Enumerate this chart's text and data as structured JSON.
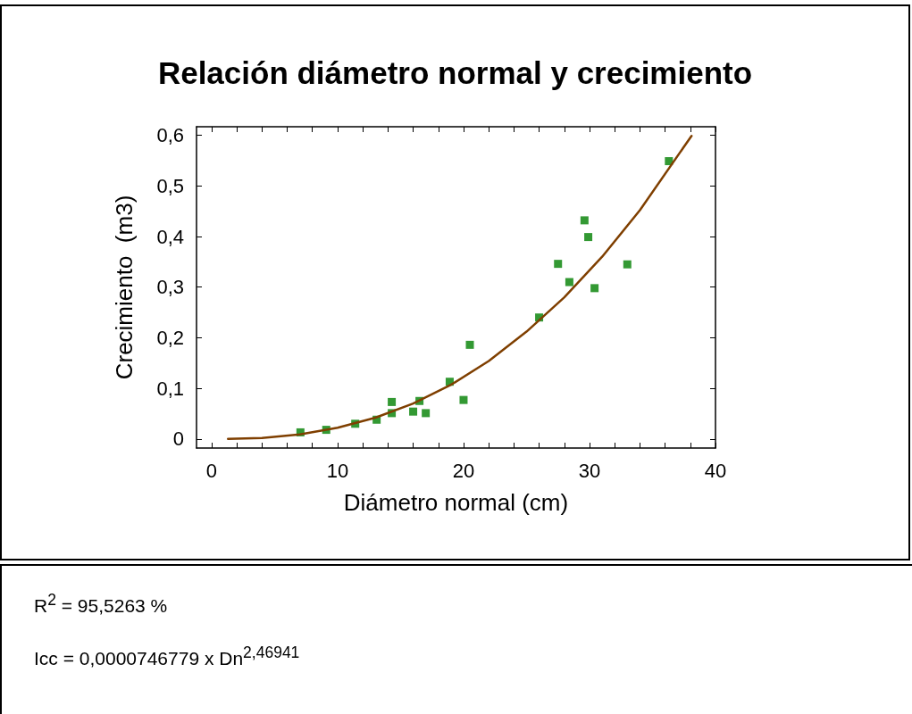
{
  "chart_data": {
    "type": "scatter",
    "title": "Relación diámetro normal y crecimiento",
    "xlabel": "Diámetro normal (cm)",
    "ylabel": "Crecimiento  (m3)",
    "xlim": [
      -1.2,
      40
    ],
    "ylim": [
      -0.018,
      0.617
    ],
    "xticks": [
      0,
      {
        "value": 2,
        "label": null
      },
      {
        "value": 4,
        "label": null
      },
      {
        "value": 6,
        "label": null
      },
      {
        "value": 8,
        "label": null
      },
      10,
      {
        "value": 12,
        "label": null
      },
      {
        "value": 14,
        "label": null
      },
      {
        "value": 16,
        "label": null
      },
      {
        "value": 18,
        "label": null
      },
      20,
      {
        "value": 22,
        "label": null
      },
      {
        "value": 24,
        "label": null
      },
      {
        "value": 26,
        "label": null
      },
      {
        "value": 28,
        "label": null
      },
      30,
      {
        "value": 32,
        "label": null
      },
      {
        "value": 34,
        "label": null
      },
      {
        "value": 36,
        "label": null
      },
      {
        "value": 38,
        "label": null
      },
      40
    ],
    "yticks": [
      0,
      {
        "value": 0.1,
        "label": "0,1"
      },
      {
        "value": 0.2,
        "label": "0,2"
      },
      {
        "value": 0.3,
        "label": "0,3"
      },
      {
        "value": 0.4,
        "label": "0,4"
      },
      {
        "value": 0.5,
        "label": "0,5"
      },
      {
        "value": 0.6,
        "label": "0,6"
      }
    ],
    "grid": false,
    "series": [
      {
        "marker": "square",
        "color": "#008000",
        "x": [
          7.05,
          9.1,
          11.4,
          13.1,
          14.3,
          14.3,
          16.0,
          16.5,
          17.0,
          18.9,
          20.0,
          20.5,
          26.0,
          27.5,
          28.4,
          29.6,
          29.9,
          30.4,
          33.0,
          36.3
        ],
        "values": [
          0.013,
          0.018,
          0.03,
          0.038,
          0.073,
          0.051,
          0.054,
          0.075,
          0.051,
          0.113,
          0.077,
          0.186,
          0.24,
          0.346,
          0.31,
          0.432,
          0.399,
          0.298,
          0.345,
          0.549
        ]
      },
      {
        "type": "line",
        "marker": "none",
        "line_style": "solid",
        "color": "#7f3f00",
        "x": [
          1.3,
          4,
          7,
          10,
          13,
          16,
          19,
          22,
          25,
          28,
          31,
          34,
          38.1
        ],
        "values": [
          0.0,
          0.002,
          0.009,
          0.022,
          0.042,
          0.07,
          0.107,
          0.154,
          0.212,
          0.28,
          0.36,
          0.452,
          0.599
        ]
      }
    ],
    "annotations": [
      "R$^{2}$ = 95,5263 %",
      "Icc = 0,0000746779 x  Dn$^{2,46941}$"
    ]
  }
}
